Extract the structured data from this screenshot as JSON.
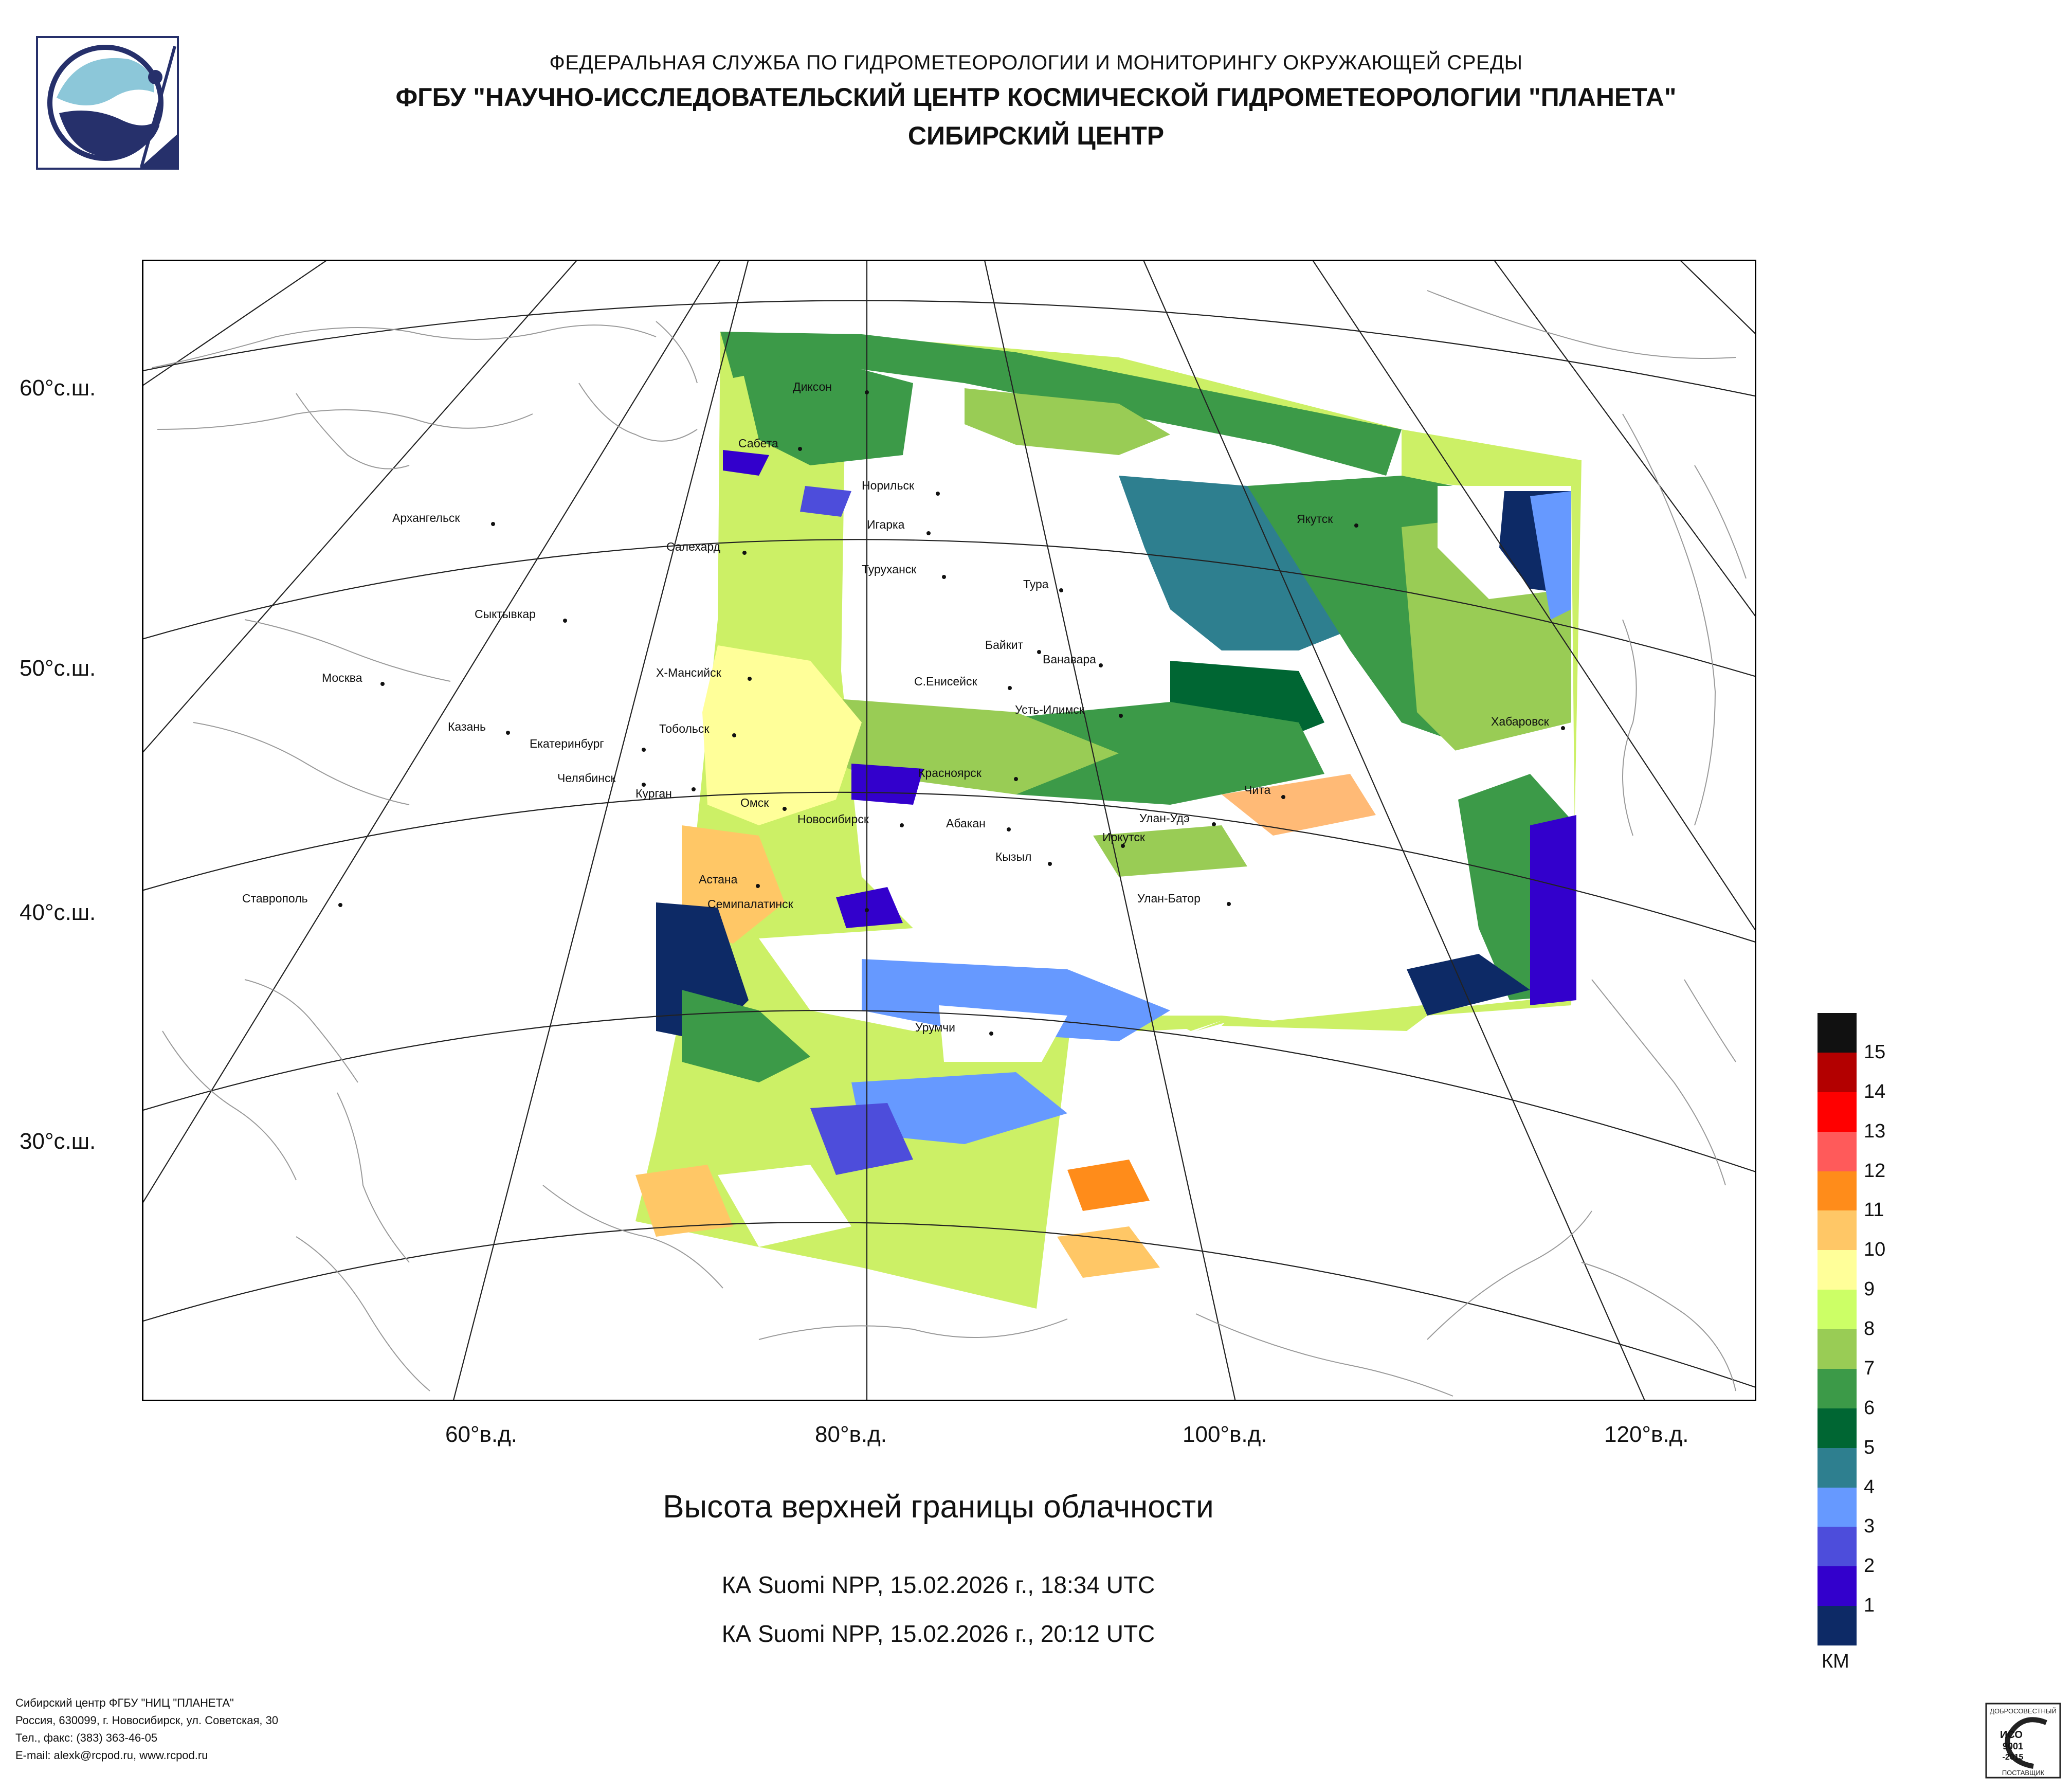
{
  "header": {
    "line1": "ФЕДЕРАЛЬНАЯ СЛУЖБА ПО ГИДРОМЕТЕОРОЛОГИИ И МОНИТОРИНГУ ОКРУЖАЮЩЕЙ СРЕДЫ",
    "line2": "ФГБУ \"НАУЧНО-ИССЛЕДОВАТЕЛЬСКИЙ ЦЕНТР КОСМИЧЕСКОЙ ГИДРОМЕТЕОРОЛОГИИ \"ПЛАНЕТА\"",
    "line3": "СИБИРСКИЙ ЦЕНТР"
  },
  "map": {
    "lat_labels": [
      "60°с.ш.",
      "50°с.ш.",
      "40°с.ш.",
      "30°с.ш."
    ],
    "lon_labels": [
      "60°в.д.",
      "80°в.д.",
      "100°в.д.",
      "120°в.д."
    ],
    "cities": [
      {
        "name": "Диксон"
      },
      {
        "name": "Сабета"
      },
      {
        "name": "Норильск"
      },
      {
        "name": "Игарка"
      },
      {
        "name": "Салехард"
      },
      {
        "name": "Туруханск"
      },
      {
        "name": "Тура"
      },
      {
        "name": "Якутск"
      },
      {
        "name": "Архангельск"
      },
      {
        "name": "Сыктывкар"
      },
      {
        "name": "Москва"
      },
      {
        "name": "Х-Мансийск"
      },
      {
        "name": "Байкит"
      },
      {
        "name": "Ванавара"
      },
      {
        "name": "С.Енисейск"
      },
      {
        "name": "Усть-Илимск"
      },
      {
        "name": "Казань"
      },
      {
        "name": "Тобольск"
      },
      {
        "name": "Екатеринбург"
      },
      {
        "name": "Хабаровск"
      },
      {
        "name": "Челябинск"
      },
      {
        "name": "Курган"
      },
      {
        "name": "Красноярск"
      },
      {
        "name": "Чита"
      },
      {
        "name": "Омск"
      },
      {
        "name": "Новосибирск"
      },
      {
        "name": "Абакан"
      },
      {
        "name": "Улан-Удэ"
      },
      {
        "name": "Иркутск"
      },
      {
        "name": "Кызыл"
      },
      {
        "name": "Астана"
      },
      {
        "name": "Ставрополь"
      },
      {
        "name": "Улан-Батор"
      },
      {
        "name": "Семипалатинск"
      },
      {
        "name": "Урумчи"
      }
    ]
  },
  "title": "Высота верхней границы облачности",
  "passes": [
    "КА Suomi NPP, 15.02.2026 г., 18:34 UTC",
    "КА Suomi NPP, 15.02.2026 г., 20:12 UTC"
  ],
  "legend": {
    "unit": "КМ",
    "colors": [
      "#111111",
      "#b30000",
      "#ff0000",
      "#ff5a5a",
      "#ff8c1a",
      "#ffc766",
      "#ffff99",
      "#ccff66",
      "#99cc55",
      "#3c9a48",
      "#006633",
      "#2e7f8f",
      "#6699ff",
      "#4d4ddb",
      "#3300cc",
      "#0d2a66"
    ],
    "labels": [
      "15",
      "14",
      "13",
      "12",
      "11",
      "10",
      "9",
      "8",
      "7",
      "6",
      "5",
      "4",
      "3",
      "2",
      "1"
    ]
  },
  "footer": {
    "line1": "Сибирский центр ФГБУ \"НИЦ \"ПЛАНЕТА\"",
    "line2": "Россия, 630099, г. Новосибирск, ул. Советская, 30",
    "line3": "Тел., факс: (383) 363-46-05",
    "line4": "E-mail: alexk@rcpod.ru, www.rcpod.ru"
  },
  "cert": {
    "top": "ДОБРОСОВЕСТНЫЙ",
    "l1": "ИСО",
    "l2": "9001",
    "l3": "-2015",
    "bottom": "ПОСТАВЩИК"
  }
}
